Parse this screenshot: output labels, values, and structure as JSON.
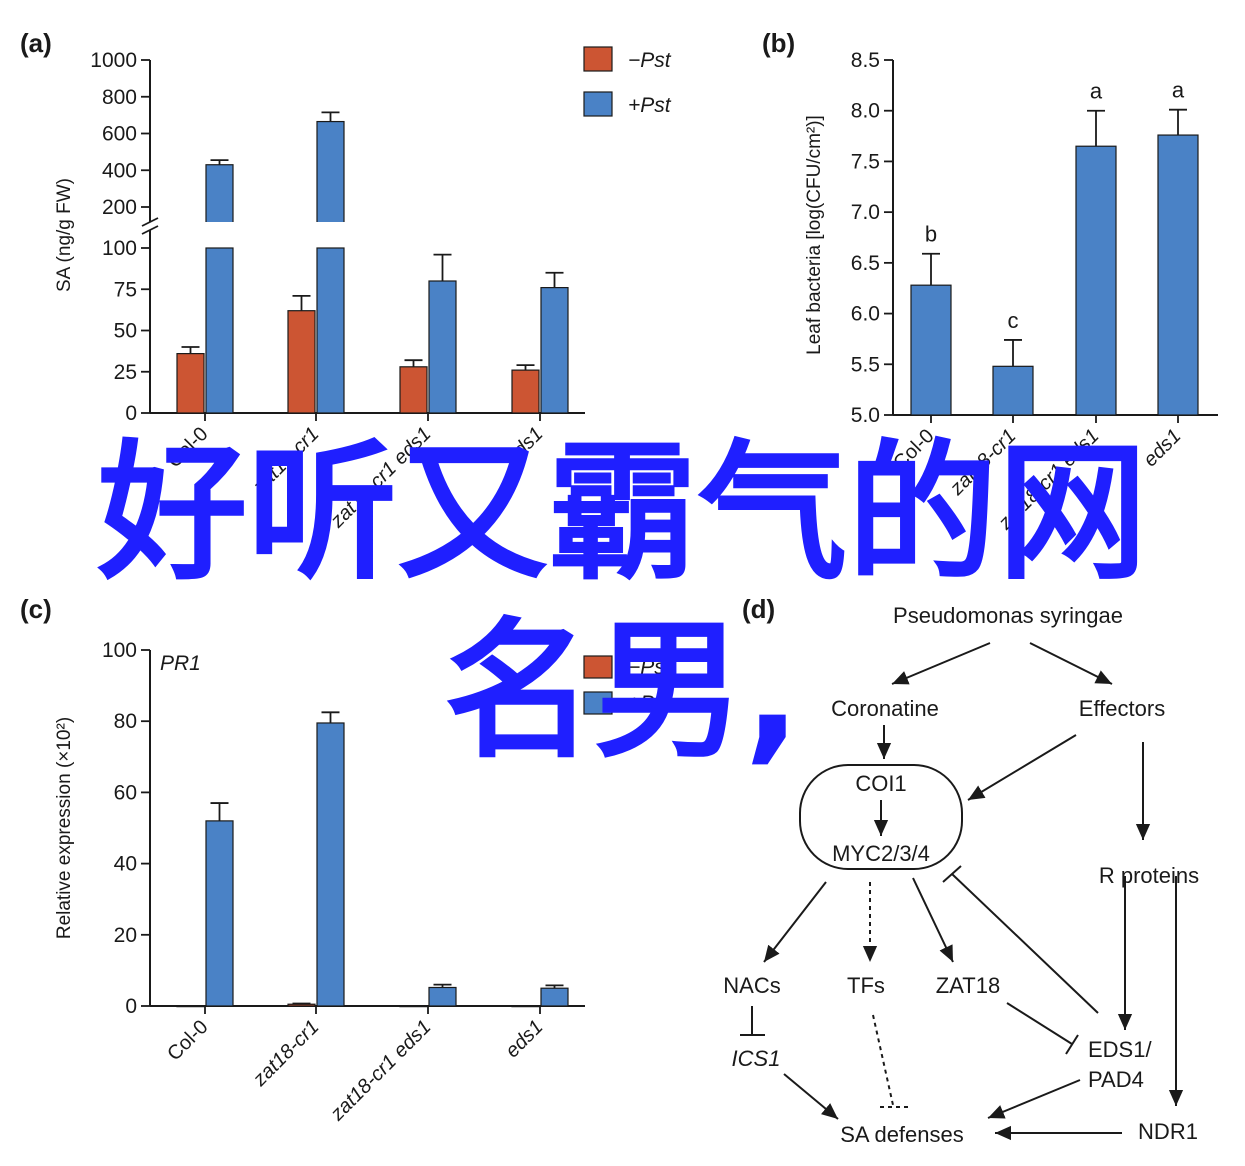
{
  "colors": {
    "red": "#CC5533",
    "blue": "#4A82C6",
    "ink": "#1a1a1a",
    "overlay": "#1f1fff"
  },
  "categories": [
    "Col-0",
    "zat18-cr1",
    "zat18-cr1 eds1",
    "eds1"
  ],
  "panels": {
    "a": {
      "label": "(a)",
      "legend": [
        "−Pst",
        "+Pst"
      ],
      "chart_data": {
        "type": "bar",
        "title": "",
        "ylabel": "SA (ng/g FW)",
        "xlabel": "",
        "categories": [
          "Col-0",
          "zat18-cr1",
          "zat18-cr1 eds1",
          "eds1"
        ],
        "series": [
          {
            "name": "−Pst",
            "values": [
              36,
              62,
              28,
              26
            ],
            "errors": [
              4,
              9,
              4,
              3
            ]
          },
          {
            "name": "+Pst",
            "values": [
              430,
              665,
              80,
              76
            ],
            "errors": [
              25,
              50,
              16,
              9
            ]
          }
        ],
        "ylim_lower": [
          0,
          100
        ],
        "ylim_upper": [
          200,
          1000
        ],
        "yticks_lower": [
          "0",
          "25",
          "50",
          "75",
          "100"
        ],
        "yticks_upper": [
          "200",
          "400",
          "600",
          "800",
          "1000"
        ]
      }
    },
    "b": {
      "label": "(b)",
      "chart_data": {
        "type": "bar",
        "title": "",
        "ylabel": "Leaf bacteria [log(CFU/cm²)]",
        "xlabel": "",
        "categories": [
          "Col-0",
          "zat18-cr1",
          "zat18-cr1 eds1",
          "eds1"
        ],
        "values": [
          6.28,
          5.48,
          7.65,
          7.76
        ],
        "errors": [
          0.31,
          0.26,
          0.35,
          0.25
        ],
        "annotations": [
          "b",
          "c",
          "a",
          "a"
        ],
        "ylim": [
          5.0,
          8.5
        ],
        "yticks": [
          "5.0",
          "5.5",
          "6.0",
          "6.5",
          "7.0",
          "7.5",
          "8.0",
          "8.5"
        ]
      }
    },
    "c": {
      "label": "(c)",
      "title": "PR1",
      "legend": [
        "−Pst",
        "+Pst"
      ],
      "chart_data": {
        "type": "bar",
        "title": "PR1",
        "ylabel": "Relative expression (×10²)",
        "xlabel": "",
        "categories": [
          "Col-0",
          "zat18-cr1",
          "zat18-cr1 eds1",
          "eds1"
        ],
        "series": [
          {
            "name": "−Pst",
            "values": [
              0.1,
              0.5,
              0.1,
              0.1
            ],
            "errors": [
              0,
              0.2,
              0,
              0
            ]
          },
          {
            "name": "+Pst",
            "values": [
              52,
              79.5,
              5.2,
              5
            ],
            "errors": [
              5,
              3,
              0.8,
              0.8
            ]
          }
        ],
        "ylim": [
          0,
          100
        ],
        "yticks": [
          "0",
          "20",
          "40",
          "60",
          "80",
          "100"
        ]
      }
    },
    "d": {
      "label": "(d)",
      "nodes": {
        "pst": "Pseudomonas syringae",
        "coronatine": "Coronatine",
        "effectors": "Effectors",
        "coi1": "COI1",
        "myc": "MYC2/3/4",
        "rproteins": "R proteins",
        "nacs": "NACs",
        "tfs": "TFs",
        "zat18": "ZAT18",
        "ics1": "ICS1",
        "eds1": "EDS1/",
        "pad4": "PAD4",
        "sa": "SA defenses",
        "ndr1": "NDR1"
      }
    }
  },
  "overlay": {
    "line1": "好听又霸气的网",
    "line2": "名男,"
  }
}
